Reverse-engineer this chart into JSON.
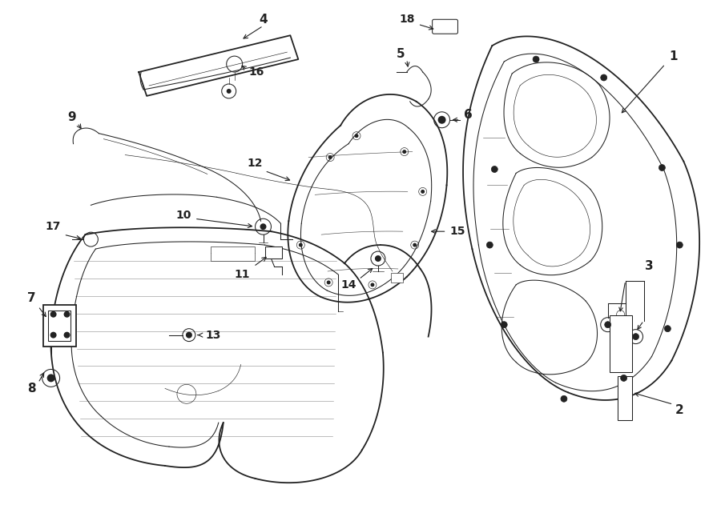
{
  "bg_color": "#ffffff",
  "line_color": "#222222",
  "label_color": "#000000",
  "fig_width": 9.0,
  "fig_height": 6.61,
  "lw_outer": 1.3,
  "lw_inner": 0.75,
  "lw_fine": 0.45
}
